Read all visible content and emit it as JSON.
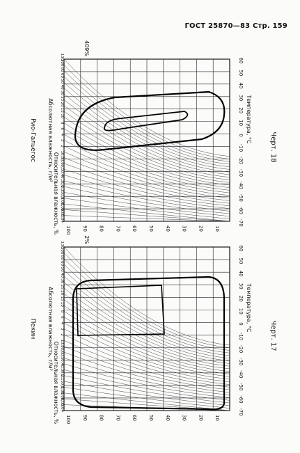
{
  "header": {
    "text": "ГОСТ 25870—83 Стр. 159"
  },
  "charts": [
    {
      "place": "Рио-Гальегос",
      "caption": "Черт. 18",
      "axis_abs": "Абсолютная влажность, г/м³",
      "axis_rel": "Относительная влажность, %",
      "axis_temp": "Температура, °С",
      "corner_pct": "409%",
      "abs_ticks": [
        "130",
        "100",
        "80",
        "60",
        "50",
        "40",
        "30",
        "25",
        "20",
        "15",
        "10",
        "8",
        "6",
        "4",
        "3",
        "2",
        "1",
        "0,8",
        "0,6",
        "0,5",
        "0,4",
        "0,3",
        "0,2",
        "0,15",
        "0,1",
        "0,08",
        "0,06",
        "0,05",
        "0,04"
      ],
      "rel_ticks": [
        "100",
        "90",
        "80",
        "70",
        "60",
        "50",
        "40",
        "30",
        "20",
        "10"
      ],
      "temp_ticks": [
        "-70",
        "-60",
        "-50",
        "-40",
        "-30",
        "-20",
        "-10",
        "0",
        "10",
        "20",
        "30",
        "40",
        "50",
        "60"
      ]
    },
    {
      "place": "Пекин",
      "caption": "Черт. 17",
      "axis_abs": "Абсолютная влажность, г/м³",
      "axis_rel": "Относительная влажность, %",
      "axis_temp": "Температура, °С",
      "corner_pct": "2%",
      "abs_ticks": [
        "130",
        "100",
        "80",
        "60",
        "50",
        "40",
        "30",
        "25",
        "20",
        "15",
        "10",
        "8",
        "6",
        "4",
        "3",
        "2",
        "1",
        "0,8",
        "0,6",
        "0,5",
        "0,4",
        "0,3",
        "0,2",
        "0,15",
        "0,1",
        "0,08",
        "0,06",
        "0,05",
        "0,04"
      ],
      "rel_ticks": [
        "100",
        "90",
        "80",
        "70",
        "60",
        "50",
        "40",
        "30",
        "20",
        "10"
      ],
      "temp_ticks": [
        "-70",
        "-60",
        "-50",
        "-40",
        "-30",
        "-20",
        "-10",
        "0",
        "10",
        "20",
        "30",
        "40",
        "50",
        "60"
      ]
    }
  ]
}
